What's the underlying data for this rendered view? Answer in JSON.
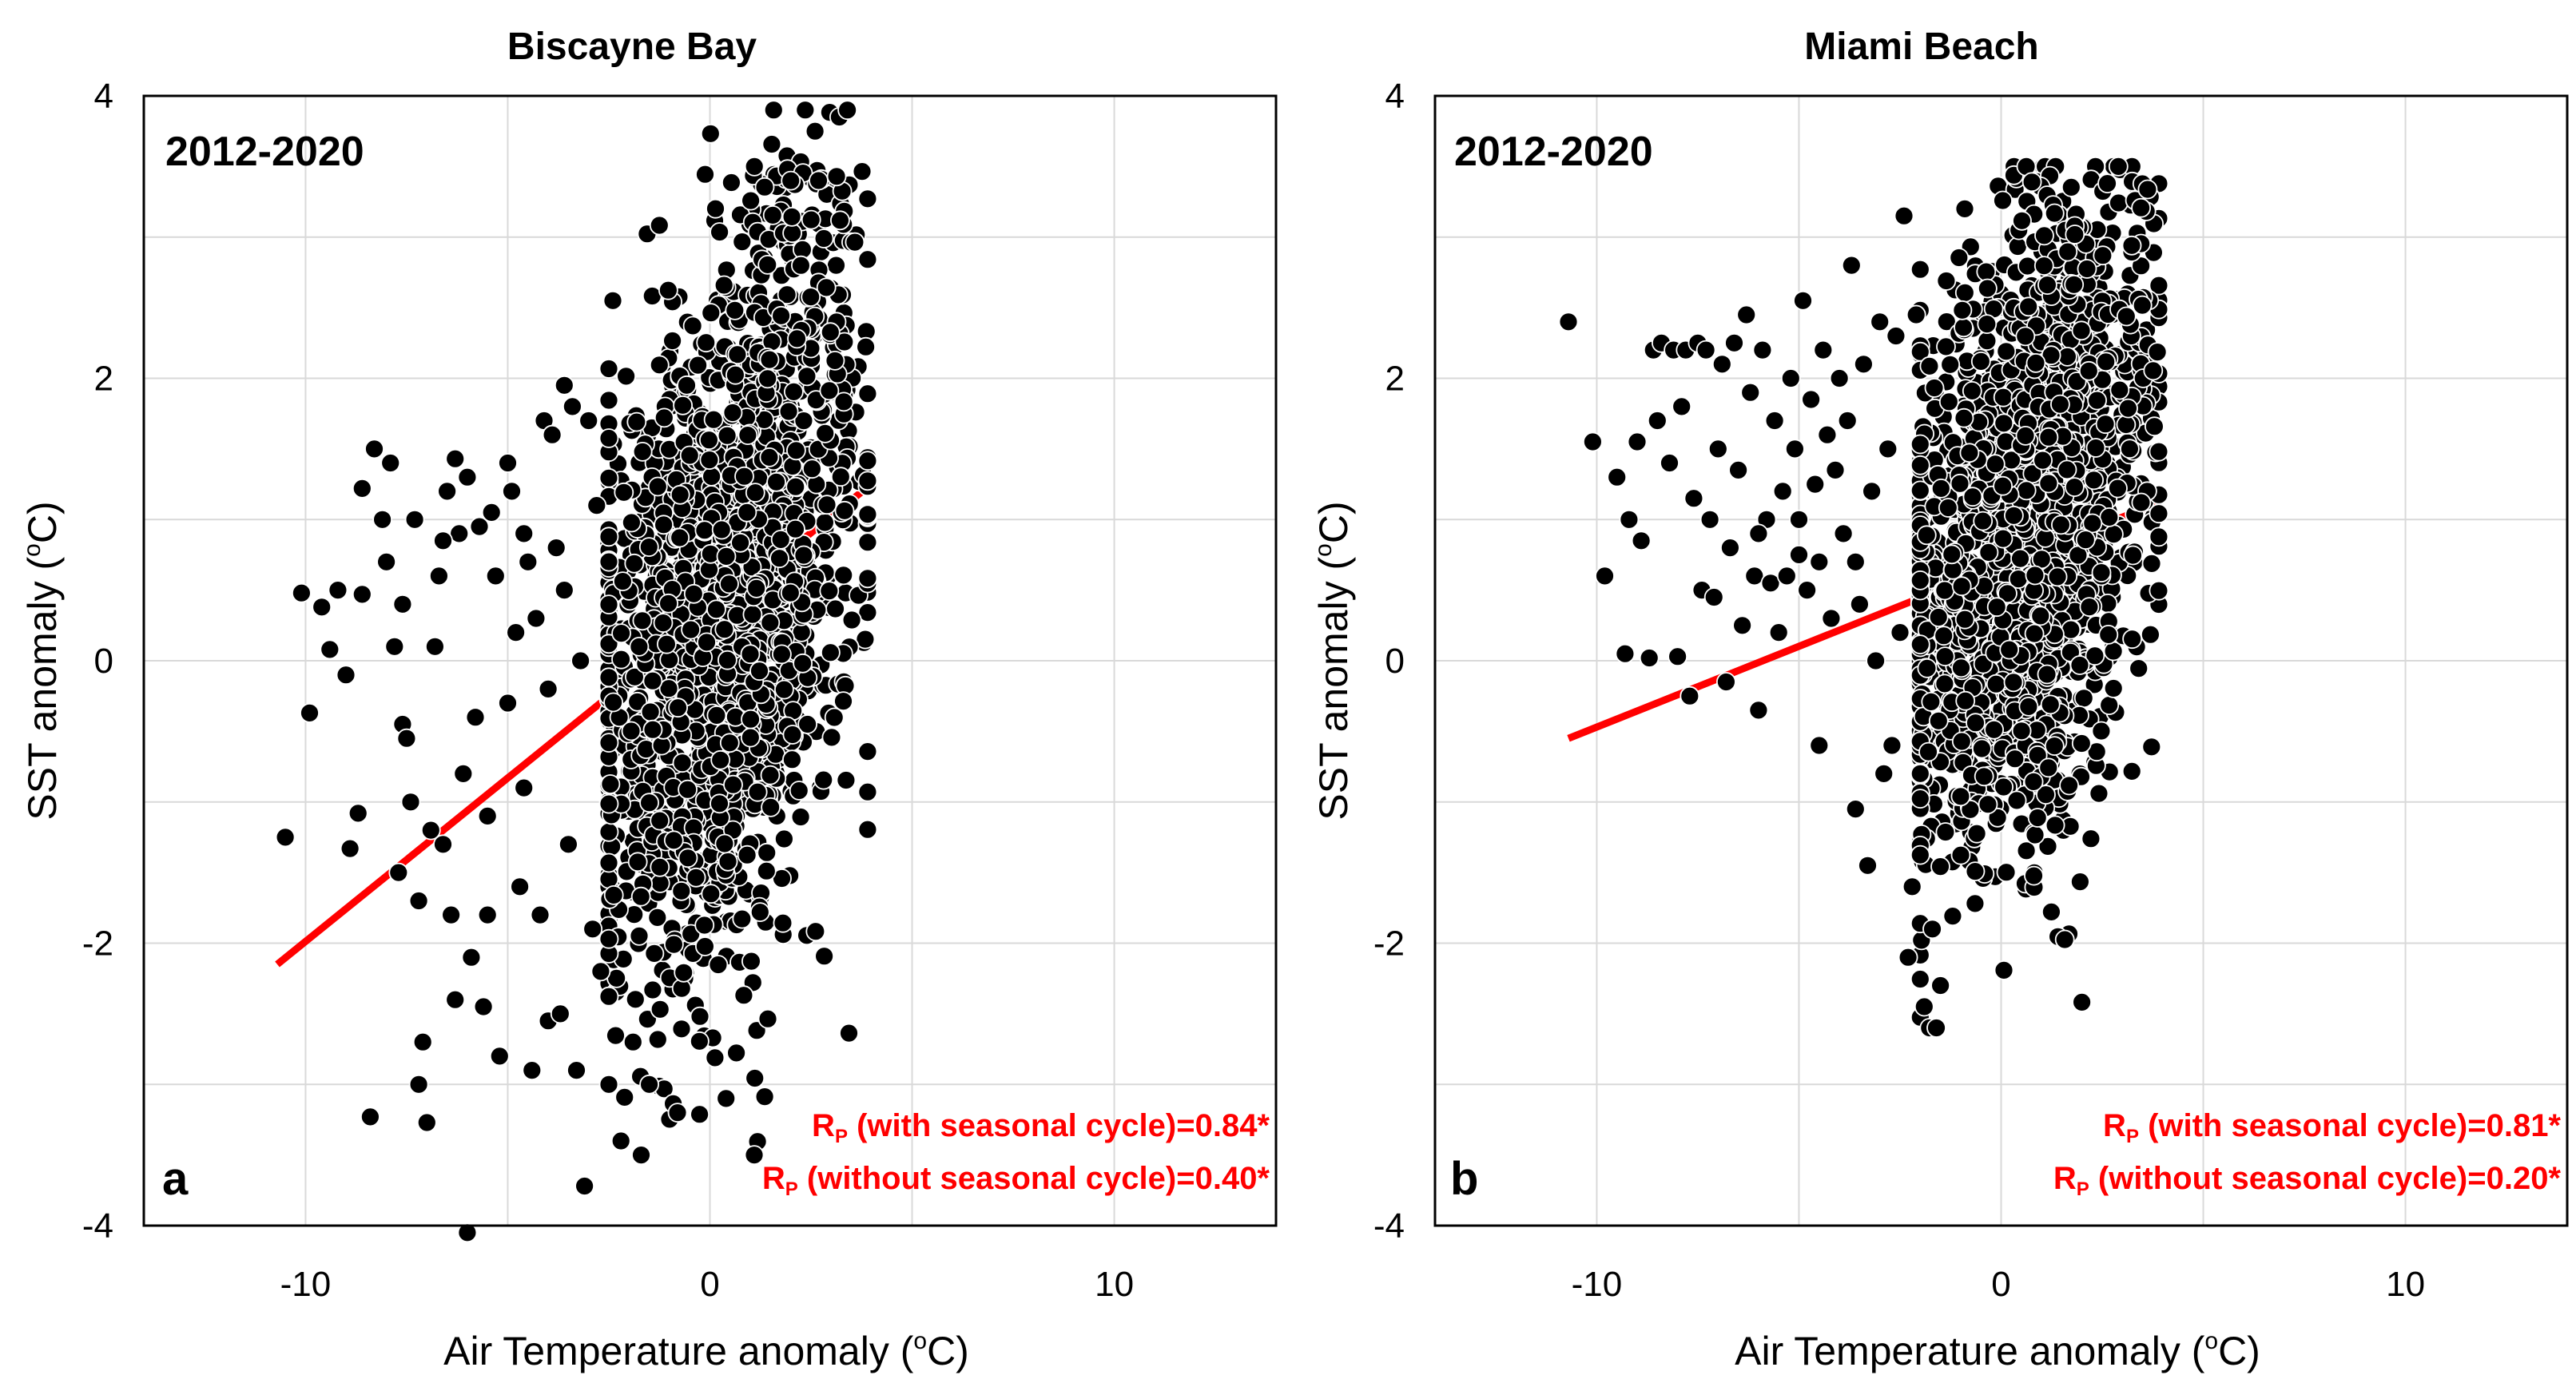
{
  "chart_data": [
    {
      "type": "scatter",
      "panel": "a",
      "title": "Biscayne Bay",
      "period": "2012-2020",
      "xlabel": "Air Temperature anomaly (",
      "xlabel_unit": "o",
      "xlabel_end": "C)",
      "ylabel": "SST  anomaly (",
      "ylabel_unit": "o",
      "ylabel_end": "C)",
      "xlim": [
        -14,
        14
      ],
      "ylim": [
        -4,
        4
      ],
      "xticks": [
        -10,
        0,
        10
      ],
      "yticks": [
        -4,
        -2,
        0,
        2,
        4
      ],
      "xgrid": [
        -10,
        -5,
        0,
        5,
        10
      ],
      "ygrid": [
        -3,
        -2,
        -1,
        0,
        1,
        2,
        3
      ],
      "annotations": [
        {
          "prefix": "R",
          "sub": "P",
          "text": " (with seasonal cycle)=0.84*"
        },
        {
          "prefix": "R",
          "sub": "P",
          "text": " (without seasonal cycle)=0.40*"
        }
      ],
      "fit_line": {
        "x": [
          -10.7,
          3.9
        ],
        "y": [
          -2.15,
          1.23
        ],
        "color": "#ff0000"
      },
      "cloud": {
        "seed": 12345,
        "n": 1750,
        "x_mean": 0.2,
        "x_sd": 1.6,
        "x_min": -2.5,
        "x_max": 3.9,
        "slope": 0.23,
        "intercept": 0.2,
        "noise_sd": 1.2,
        "y_min": -3.5,
        "y_max": 3.9,
        "features": [
          {
            "x_min": 1.0,
            "x_max": 3.6,
            "y_min": 1.8,
            "y_max": 3.5,
            "n": 120
          }
        ]
      },
      "points": [
        [
          -10.5,
          -1.25
        ],
        [
          -10.1,
          0.48
        ],
        [
          -9.9,
          -0.37
        ],
        [
          -9.6,
          0.38
        ],
        [
          -9.4,
          0.08
        ],
        [
          -9.2,
          0.5
        ],
        [
          -8.9,
          -1.33
        ],
        [
          -8.7,
          -1.08
        ],
        [
          -8.6,
          1.22
        ],
        [
          -8.6,
          0.47
        ],
        [
          -8.4,
          -3.23
        ],
        [
          -8.3,
          1.5
        ],
        [
          -8.1,
          1.0
        ],
        [
          -7.9,
          1.4
        ],
        [
          -7.8,
          0.1
        ],
        [
          -7.7,
          -1.5
        ],
        [
          -7.6,
          -0.45
        ],
        [
          -7.5,
          -0.55
        ],
        [
          -7.4,
          -1.0
        ],
        [
          -7.3,
          1.0
        ],
        [
          -7.2,
          -1.7
        ],
        [
          -7.1,
          -2.7
        ],
        [
          -7.0,
          -3.27
        ],
        [
          -6.9,
          -1.2
        ],
        [
          -6.8,
          0.1
        ],
        [
          -6.7,
          0.6
        ],
        [
          -6.6,
          -1.3
        ],
        [
          -6.5,
          1.2
        ],
        [
          -6.4,
          -1.8
        ],
        [
          -6.3,
          1.43
        ],
        [
          -6.2,
          0.9
        ],
        [
          -6.1,
          -0.8
        ],
        [
          -6.0,
          1.3
        ],
        [
          -5.9,
          -2.1
        ],
        [
          -5.8,
          -0.4
        ],
        [
          -5.7,
          0.95
        ],
        [
          -5.6,
          -2.45
        ],
        [
          -5.5,
          -1.8
        ],
        [
          -5.4,
          1.05
        ],
        [
          -5.3,
          0.6
        ],
        [
          -5.2,
          -2.8
        ],
        [
          -5.0,
          -0.3
        ],
        [
          -4.9,
          1.2
        ],
        [
          -4.8,
          0.2
        ],
        [
          -4.7,
          -1.6
        ],
        [
          -4.6,
          -0.9
        ],
        [
          -4.5,
          0.7
        ],
        [
          -4.4,
          -2.9
        ],
        [
          -4.3,
          0.3
        ],
        [
          -4.2,
          -1.8
        ],
        [
          -4.1,
          1.7
        ],
        [
          -4.0,
          -2.55
        ],
        [
          -3.9,
          1.6
        ],
        [
          -3.8,
          0.8
        ],
        [
          -3.7,
          -2.5
        ],
        [
          -3.6,
          1.95
        ],
        [
          -3.5,
          -1.3
        ],
        [
          -3.4,
          1.8
        ],
        [
          -3.3,
          -2.9
        ],
        [
          -3.2,
          0.0
        ],
        [
          -3.1,
          -3.72
        ],
        [
          -3.0,
          1.7
        ],
        [
          -2.9,
          -1.9
        ],
        [
          -2.8,
          1.1
        ],
        [
          -2.5,
          -3.0
        ],
        [
          -2.4,
          2.55
        ],
        [
          -2.2,
          -3.4
        ],
        [
          -1.9,
          -2.7
        ],
        [
          -1.7,
          -3.5
        ],
        [
          -1.5,
          -3.0
        ],
        [
          -0.8,
          -3.2
        ],
        [
          0.4,
          -3.1
        ],
        [
          -6.0,
          -4.05
        ],
        [
          -7.2,
          -3.0
        ],
        [
          -8.0,
          0.7
        ],
        [
          -9.0,
          -0.1
        ],
        [
          -6.6,
          0.85
        ],
        [
          -5.0,
          1.4
        ],
        [
          -4.0,
          -0.2
        ],
        [
          -5.5,
          -1.1
        ],
        [
          -6.3,
          -2.4
        ],
        [
          -7.6,
          0.4
        ],
        [
          -4.6,
          0.9
        ],
        [
          -3.6,
          0.5
        ],
        [
          -2.7,
          -2.2
        ],
        [
          3.2,
          3.85
        ],
        [
          3.4,
          3.9
        ],
        [
          2.6,
          3.75
        ],
        [
          1.1,
          3.5
        ],
        [
          2.0,
          3.4
        ]
      ]
    },
    {
      "type": "scatter",
      "panel": "b",
      "title": "Miami Beach",
      "period": "2012-2020",
      "xlabel": "Air Temperature anomaly (",
      "xlabel_unit": "o",
      "xlabel_end": "C)",
      "ylabel": "SST  anomaly (",
      "ylabel_unit": "o",
      "ylabel_end": "C)",
      "xlim": [
        -14,
        14
      ],
      "ylim": [
        -4,
        4
      ],
      "xticks": [
        -10,
        0,
        10
      ],
      "yticks": [
        -4,
        -2,
        0,
        2,
        4
      ],
      "xgrid": [
        -10,
        -5,
        0,
        5,
        10
      ],
      "ygrid": [
        -3,
        -2,
        -1,
        0,
        1,
        2,
        3
      ],
      "annotations": [
        {
          "prefix": "R",
          "sub": "P",
          "text": " (with seasonal cycle)=0.81*"
        },
        {
          "prefix": "R",
          "sub": "P",
          "text": " (without seasonal cycle)=0.20*"
        }
      ],
      "fit_line": {
        "x": [
          -10.7,
          3.9
        ],
        "y": [
          -0.55,
          1.12
        ],
        "color": "#ff0000"
      },
      "cloud": {
        "seed": 67890,
        "n": 1750,
        "x_mean": 0.4,
        "x_sd": 1.5,
        "x_min": -2.0,
        "x_max": 3.9,
        "slope": 0.2,
        "intercept": 0.7,
        "noise_sd": 1.05,
        "y_min": -2.6,
        "y_max": 3.5,
        "features": [
          {
            "x_min": 0.5,
            "x_max": 3.9,
            "y_min": 1.5,
            "y_max": 3.4,
            "n": 140
          }
        ]
      },
      "points": [
        [
          -10.7,
          2.4
        ],
        [
          -10.1,
          1.55
        ],
        [
          -9.8,
          0.6
        ],
        [
          -9.5,
          1.3
        ],
        [
          -9.3,
          0.05
        ],
        [
          -9.2,
          1.0
        ],
        [
          -9.0,
          1.55
        ],
        [
          -8.9,
          0.85
        ],
        [
          -8.7,
          0.02
        ],
        [
          -8.6,
          2.2
        ],
        [
          -8.5,
          1.7
        ],
        [
          -8.4,
          2.25
        ],
        [
          -8.2,
          1.4
        ],
        [
          -8.1,
          2.2
        ],
        [
          -8.0,
          0.03
        ],
        [
          -7.9,
          1.8
        ],
        [
          -7.8,
          2.2
        ],
        [
          -7.7,
          -0.25
        ],
        [
          -7.6,
          1.15
        ],
        [
          -7.5,
          2.25
        ],
        [
          -7.4,
          0.5
        ],
        [
          -7.3,
          2.2
        ],
        [
          -7.2,
          1.0
        ],
        [
          -7.1,
          0.45
        ],
        [
          -7.0,
          1.5
        ],
        [
          -6.9,
          2.1
        ],
        [
          -6.8,
          -0.15
        ],
        [
          -6.7,
          0.8
        ],
        [
          -6.6,
          2.25
        ],
        [
          -6.5,
          1.35
        ],
        [
          -6.4,
          0.25
        ],
        [
          -6.3,
          2.45
        ],
        [
          -6.2,
          1.9
        ],
        [
          -6.1,
          0.6
        ],
        [
          -6.0,
          -0.35
        ],
        [
          -5.9,
          2.2
        ],
        [
          -5.8,
          1.0
        ],
        [
          -5.7,
          0.55
        ],
        [
          -5.6,
          1.7
        ],
        [
          -5.5,
          0.2
        ],
        [
          -5.4,
          1.2
        ],
        [
          -5.3,
          0.6
        ],
        [
          -5.2,
          2.0
        ],
        [
          -5.1,
          1.5
        ],
        [
          -5.0,
          1.0
        ],
        [
          -4.9,
          2.55
        ],
        [
          -4.8,
          0.5
        ],
        [
          -4.7,
          1.85
        ],
        [
          -4.6,
          1.25
        ],
        [
          -4.5,
          0.7
        ],
        [
          -4.4,
          2.2
        ],
        [
          -4.3,
          1.6
        ],
        [
          -4.2,
          0.3
        ],
        [
          -4.1,
          1.35
        ],
        [
          -4.0,
          2.0
        ],
        [
          -3.9,
          0.9
        ],
        [
          -3.8,
          1.7
        ],
        [
          -3.7,
          2.8
        ],
        [
          -3.6,
          -1.05
        ],
        [
          -3.5,
          0.4
        ],
        [
          -3.4,
          2.1
        ],
        [
          -3.3,
          -1.45
        ],
        [
          -3.2,
          1.2
        ],
        [
          -3.1,
          0.0
        ],
        [
          -3.0,
          2.4
        ],
        [
          -2.9,
          -0.8
        ],
        [
          -2.8,
          1.5
        ],
        [
          -2.7,
          -0.6
        ],
        [
          -2.6,
          2.3
        ],
        [
          -2.4,
          3.15
        ],
        [
          -2.3,
          -2.1
        ],
        [
          -2.2,
          -1.6
        ],
        [
          -2.1,
          2.45
        ],
        [
          -4.5,
          -0.6
        ],
        [
          -5.0,
          0.75
        ],
        [
          -6.0,
          0.9
        ],
        [
          -3.6,
          0.7
        ],
        [
          -2.5,
          0.2
        ],
        [
          -1.9,
          -2.45
        ],
        [
          -1.6,
          -2.6
        ],
        [
          -1.5,
          -2.3
        ],
        [
          -1.7,
          -1.9
        ],
        [
          -0.9,
          3.2
        ],
        [
          2.9,
          3.5
        ]
      ]
    }
  ]
}
